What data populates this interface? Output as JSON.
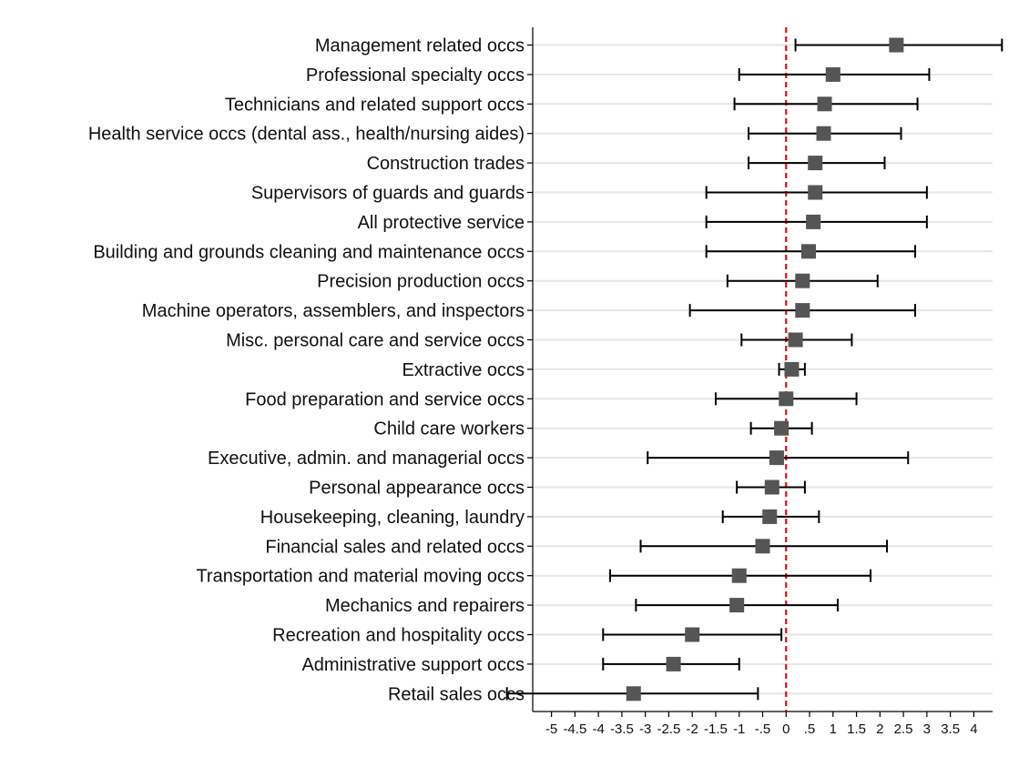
{
  "chart_data": {
    "type": "scatter",
    "title": "",
    "xlabel": "",
    "ylabel": "",
    "xlim": [
      -5.4,
      4.4
    ],
    "xticks": [
      "-5",
      "-4.5",
      "-4",
      "-3.5",
      "-3",
      "-2.5",
      "-2",
      "-1.5",
      "-1",
      "-.5",
      "0",
      ".5",
      "1",
      "1.5",
      "2",
      "2.5",
      "3",
      "3.5",
      "4"
    ],
    "reference_line": {
      "x": 0,
      "style": "dashed",
      "color": "#e01010"
    },
    "grid": "horizontal",
    "categories": [
      "Management related occs",
      "Professional specialty occs",
      "Technicians and related support occs",
      "Health service occs (dental ass., health/nursing aides)",
      "Construction trades",
      "Supervisors of guards and guards",
      "All protective service",
      "Building and grounds cleaning and maintenance occs",
      "Precision production occs",
      "Machine operators, assemblers, and inspectors",
      "Misc. personal care and service occs",
      "Extractive occs",
      "Food preparation and service occs",
      "Child care workers",
      "Executive, admin. and managerial occs",
      "Personal appearance occs",
      "Housekeeping, cleaning, laundry",
      "Financial sales and related occs",
      "Transportation and material moving occs",
      "Mechanics and repairers",
      "Recreation and hospitality occs",
      "Administrative support occs",
      "Retail sales occs"
    ],
    "estimates": [
      2.35,
      1.0,
      0.82,
      0.8,
      0.62,
      0.62,
      0.58,
      0.48,
      0.35,
      0.35,
      0.2,
      0.12,
      0.0,
      -0.1,
      -0.2,
      -0.3,
      -0.35,
      -0.5,
      -1.0,
      -1.05,
      -2.0,
      -2.4,
      -3.25
    ],
    "ci_low": [
      0.2,
      -1.0,
      -1.1,
      -0.8,
      -0.8,
      -1.7,
      -1.7,
      -1.7,
      -1.25,
      -2.05,
      -0.95,
      -0.15,
      -1.5,
      -0.75,
      -2.95,
      -1.05,
      -1.35,
      -3.1,
      -3.75,
      -3.2,
      -3.9,
      -3.9,
      -5.95
    ],
    "ci_high": [
      4.6,
      3.05,
      2.8,
      2.45,
      2.1,
      3.0,
      3.0,
      2.75,
      1.95,
      2.75,
      1.4,
      0.4,
      1.5,
      0.55,
      2.6,
      0.4,
      0.7,
      2.15,
      1.8,
      1.1,
      -0.1,
      -1.0,
      -0.6
    ],
    "colors": {
      "marker": "#555555",
      "errorbar": "#000000",
      "grid": "#e6e6e6",
      "reference": "#e01010"
    }
  }
}
